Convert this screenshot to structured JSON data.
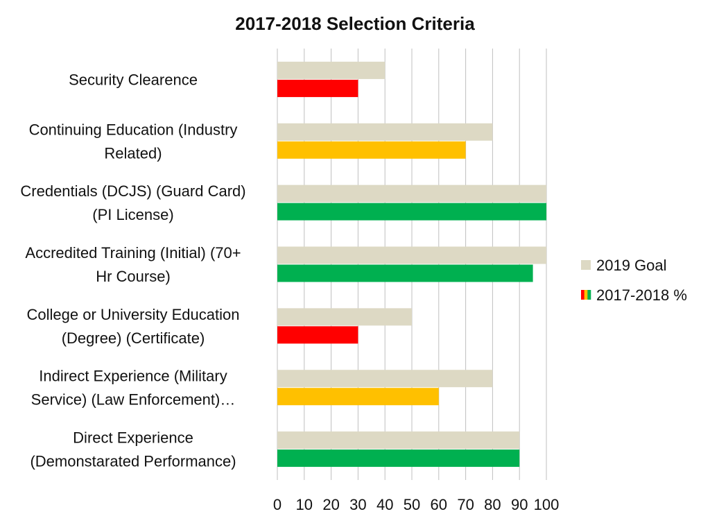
{
  "chart_data": {
    "type": "bar",
    "orientation": "horizontal",
    "title": "2017-2018 Selection Criteria",
    "categories": [
      [
        "Security Clearence"
      ],
      [
        "Continuing Education (Industry",
        "Related)"
      ],
      [
        "Credentials (DCJS) (Guard Card)",
        "(PI License)"
      ],
      [
        "Accredited Training (Initial) (70+",
        "Hr Course)"
      ],
      [
        "College or University Education",
        "(Degree) (Certificate)"
      ],
      [
        "Indirect Experience (Military",
        "Service) (Law Enforcement)…"
      ],
      [
        "Direct Experience",
        "(Demonstarated Performance)"
      ]
    ],
    "series": [
      {
        "name": "2019 Goal",
        "color": "#ddd9c4",
        "values": [
          40,
          80,
          100,
          100,
          50,
          80,
          90
        ]
      },
      {
        "name": "2017-2018 %",
        "values": [
          30,
          70,
          100,
          95,
          30,
          60,
          90
        ],
        "point_status": [
          "red",
          "amber",
          "green",
          "green",
          "red",
          "amber",
          "green"
        ]
      }
    ],
    "status_colors": {
      "red": "#ff0000",
      "amber": "#ffc000",
      "green": "#00b050"
    },
    "xlim": [
      0,
      100
    ],
    "xticks": [
      0,
      10,
      20,
      30,
      40,
      50,
      60,
      70,
      80,
      90,
      100
    ],
    "xlabel": "",
    "ylabel": "",
    "grid": true,
    "legend_position": "right",
    "legend_swatch_colors": [
      "#ff0000",
      "#ffc000",
      "#00b050"
    ]
  }
}
